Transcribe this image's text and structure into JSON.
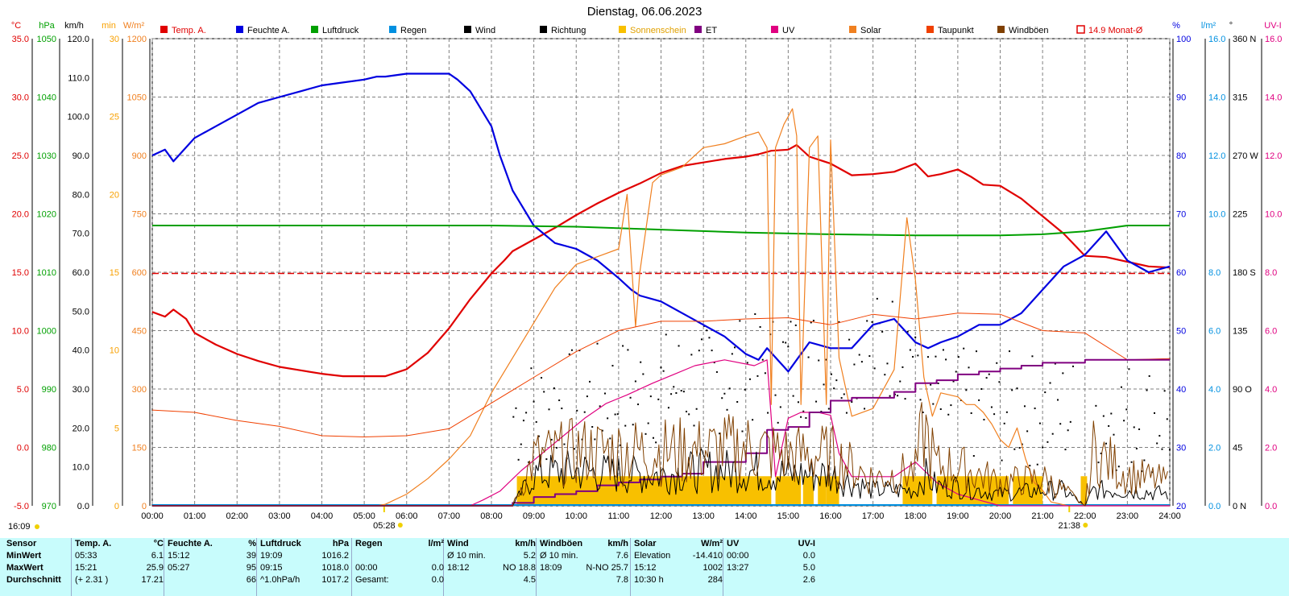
{
  "title": "Dienstag, 06.06.2023",
  "left_axis_units": {
    "temp": "°C",
    "hpa": "hPa",
    "kmh": "km/h",
    "min": "min",
    "wm2": "W/m²"
  },
  "right_axis_units": {
    "pct": "%",
    "lm2": "l/m²",
    "deg": "°",
    "uvi": "UV-I"
  },
  "legend": [
    {
      "label": "Temp. A.",
      "color": "#e00000",
      "box": "fill"
    },
    {
      "label": "Feuchte A.",
      "color": "#0000e0",
      "box": "fill"
    },
    {
      "label": "Luftdruck",
      "color": "#00a000",
      "box": "fill"
    },
    {
      "label": "Regen",
      "color": "#0090e0",
      "box": "fill"
    },
    {
      "label": "Wind",
      "color": "#000000",
      "box": "fill"
    },
    {
      "label": "Richtung",
      "color": "#000000",
      "box": "fill"
    },
    {
      "label": "Sonnenschein",
      "color": "#f8c000",
      "box": "fill"
    },
    {
      "label": "ET",
      "color": "#800080",
      "box": "fill"
    },
    {
      "label": "UV",
      "color": "#e00080",
      "box": "fill"
    },
    {
      "label": "Solar",
      "color": "#f08020",
      "box": "fill"
    },
    {
      "label": "Taupunkt",
      "color": "#f04000",
      "box": "fill"
    },
    {
      "label": "Windböen",
      "color": "#804000",
      "box": "fill"
    },
    {
      "label": "14.9 Monat-Ø",
      "color": "#e00000",
      "box": "outline"
    }
  ],
  "time_ticks": [
    "00:00",
    "01:00",
    "02:00",
    "03:00",
    "04:00",
    "05:00",
    "06:00",
    "07:00",
    "08:00",
    "09:00",
    "10:00",
    "11:00",
    "12:00",
    "13:00",
    "14:00",
    "15:00",
    "16:00",
    "17:00",
    "18:00",
    "19:00",
    "20:00",
    "21:00",
    "22:00",
    "23:00",
    "24:00"
  ],
  "sunrise_label": "05:28",
  "sunset_label": "21:38",
  "current_time_label": "16:09",
  "axes": {
    "temp": {
      "color": "#e00000",
      "ticks": [
        "35.0",
        "30.0",
        "25.0",
        "20.0",
        "15.0",
        "10.0",
        "5.0",
        "0.0",
        "-5.0"
      ]
    },
    "hpa": {
      "color": "#00a000",
      "ticks": [
        "1050",
        "1040",
        "1030",
        "1020",
        "1010",
        "1000",
        "990",
        "980",
        "970"
      ]
    },
    "kmh": {
      "color": "#000000",
      "ticks": [
        "120.0",
        "110.0",
        "100.0",
        "90.0",
        "80.0",
        "70.0",
        "60.0",
        "50.0",
        "40.0",
        "30.0",
        "20.0",
        "10.0",
        "0.0"
      ]
    },
    "min": {
      "color": "#f8a000",
      "ticks": [
        "30",
        "25",
        "20",
        "15",
        "10",
        "5",
        "0"
      ]
    },
    "wm2": {
      "color": "#f08020",
      "ticks": [
        "1200",
        "1050",
        "900",
        "750",
        "600",
        "450",
        "300",
        "150",
        "0"
      ]
    },
    "pct": {
      "color": "#0000e0",
      "ticks": [
        "100",
        "90",
        "80",
        "70",
        "60",
        "50",
        "40",
        "30",
        "20"
      ]
    },
    "lm2": {
      "color": "#0090e0",
      "ticks": [
        "16.0",
        "14.0",
        "12.0",
        "10.0",
        "8.0",
        "6.0",
        "4.0",
        "2.0",
        "0.0"
      ]
    },
    "deg": {
      "color": "#000000",
      "ticks": [
        "360 N",
        "315",
        "270 W",
        "225",
        "180 S",
        "135",
        "90 O",
        "45",
        "0 N"
      ]
    },
    "uvi": {
      "color": "#e00080",
      "ticks": [
        "16.0",
        "14.0",
        "12.0",
        "10.0",
        "8.0",
        "6.0",
        "4.0",
        "2.0",
        "0.0"
      ]
    }
  },
  "chart_data": {
    "type": "line",
    "x_unit": "hours",
    "xlim": [
      0,
      24
    ],
    "temp_ylim": [
      -5,
      35
    ],
    "series": [
      {
        "name": "Temp. A.",
        "axis": "temp",
        "color": "#e00000",
        "width": 2.2,
        "x": [
          0,
          0.3,
          0.5,
          0.8,
          1,
          1.5,
          2,
          2.5,
          3,
          3.5,
          4,
          4.5,
          5,
          5.5,
          6,
          6.5,
          7,
          7.5,
          8,
          8.3,
          8.5,
          9,
          9.5,
          10,
          10.5,
          11,
          11.5,
          12,
          12.5,
          13,
          13.5,
          14,
          14.3,
          14.6,
          15,
          15.2,
          15.5,
          16,
          16.5,
          17,
          17.5,
          18,
          18.3,
          18.6,
          19,
          19.3,
          19.6,
          20,
          20.5,
          21,
          21.5,
          22,
          22.5,
          23,
          23.5,
          24
        ],
        "y": [
          11.6,
          11.2,
          11.8,
          11.0,
          9.8,
          8.8,
          8.0,
          7.4,
          6.9,
          6.6,
          6.3,
          6.1,
          6.1,
          6.1,
          6.7,
          8.1,
          10.2,
          12.7,
          14.9,
          16.0,
          16.8,
          17.8,
          18.8,
          19.9,
          20.9,
          21.8,
          22.6,
          23.5,
          24.1,
          24.4,
          24.7,
          24.9,
          25.1,
          25.4,
          25.5,
          25.9,
          24.9,
          24.3,
          23.3,
          23.4,
          23.6,
          24.3,
          23.2,
          23.4,
          23.8,
          23.2,
          22.5,
          22.4,
          21.3,
          19.8,
          18.3,
          16.4,
          16.3,
          15.9,
          15.5,
          15.4
        ]
      },
      {
        "name": "Feuchte A.",
        "axis": "pct",
        "color": "#0000e0",
        "width": 2.2,
        "x": [
          0,
          0.3,
          0.5,
          1,
          1.5,
          2,
          2.5,
          3,
          3.5,
          4,
          4.5,
          5,
          5.3,
          5.5,
          6,
          6.5,
          7,
          7.2,
          7.5,
          8,
          8.2,
          8.5,
          9,
          9.5,
          10,
          10.5,
          11,
          11.3,
          11.5,
          12,
          12.5,
          13,
          13.5,
          14,
          14.3,
          14.5,
          15,
          15.5,
          16,
          16.5,
          17,
          17.5,
          18,
          18.3,
          18.6,
          19,
          19.5,
          20,
          20.5,
          21,
          21.5,
          22,
          22.5,
          23,
          23.5,
          24
        ],
        "y": [
          80,
          81,
          79,
          83,
          85,
          87,
          89,
          90,
          91,
          92,
          92.5,
          93,
          93.5,
          93.5,
          94,
          94,
          94,
          93,
          91,
          85,
          80,
          74,
          68,
          65,
          64,
          62,
          59,
          57,
          56,
          55,
          53,
          51,
          49,
          46,
          45,
          47,
          43,
          48,
          47,
          47,
          51,
          52,
          48,
          47,
          48,
          49,
          51,
          51,
          53,
          57,
          61,
          63,
          67,
          62,
          60,
          61
        ]
      },
      {
        "name": "Luftdruck",
        "axis": "hpa",
        "color": "#00a000",
        "width": 2,
        "x": [
          0,
          3,
          6,
          8,
          10,
          12,
          14,
          16,
          18,
          19,
          20,
          21,
          22,
          23,
          24
        ],
        "y": [
          1018,
          1018,
          1018,
          1018,
          1017.8,
          1017.3,
          1016.8,
          1016.5,
          1016.3,
          1016.3,
          1016.3,
          1016.5,
          1017,
          1018,
          1018
        ]
      },
      {
        "name": "Solar",
        "axis": "wm2",
        "color": "#f08020",
        "width": 1.2,
        "x": [
          0,
          5.3,
          5.5,
          6,
          6.5,
          7,
          7.5,
          8,
          8.5,
          9,
          9.5,
          10,
          10.5,
          11,
          11.2,
          11.4,
          11.5,
          11.8,
          12,
          12.5,
          13,
          13.5,
          14,
          14.3,
          14.5,
          14.6,
          14.7,
          14.9,
          15,
          15.1,
          15.2,
          15.3,
          15.5,
          15.7,
          15.9,
          16,
          16.2,
          16.5,
          17,
          17.5,
          17.8,
          18,
          18.2,
          18.4,
          18.6,
          19,
          19.2,
          19.4,
          19.6,
          19.8,
          20,
          20.2,
          20.4,
          20.6,
          20.8,
          21,
          21.2,
          21.4,
          21.6,
          21.7,
          22,
          22.5,
          23,
          23.5,
          24
        ],
        "y": [
          0,
          0,
          4,
          30,
          70,
          120,
          180,
          290,
          380,
          470,
          560,
          620,
          640,
          660,
          800,
          460,
          600,
          830,
          850,
          870,
          920,
          930,
          950,
          960,
          920,
          260,
          920,
          980,
          1000,
          1020,
          950,
          260,
          920,
          950,
          260,
          940,
          380,
          230,
          250,
          350,
          740,
          580,
          330,
          230,
          290,
          280,
          260,
          260,
          240,
          210,
          170,
          150,
          200,
          120,
          60,
          40,
          10,
          5,
          0,
          0,
          0,
          0,
          0,
          0,
          0
        ]
      },
      {
        "name": "Taupunkt",
        "axis": "temp",
        "color": "#f04000",
        "width": 1,
        "x": [
          0,
          1,
          2,
          3,
          4,
          5,
          6,
          7,
          8,
          9,
          10,
          11,
          12,
          13,
          14,
          15,
          16,
          17,
          18,
          19,
          20,
          21,
          22,
          23,
          24
        ],
        "y": [
          3.2,
          3,
          2.3,
          1.8,
          1,
          0.9,
          1,
          1.6,
          3.8,
          6,
          8.2,
          10,
          10.8,
          10.8,
          11,
          11.1,
          10.5,
          11.4,
          11,
          11.5,
          11.4,
          10,
          9.8,
          7.5,
          7.6
        ]
      },
      {
        "name": "UV",
        "axis": "uvi",
        "color": "#e00080",
        "width": 1.2,
        "x": [
          0,
          7.5,
          7.8,
          8.2,
          8.7,
          9.2,
          9.7,
          10.2,
          10.7,
          11.2,
          11.8,
          12.3,
          12.8,
          13.5,
          14.2,
          14.5,
          14.7,
          15,
          15.3,
          15.7,
          16,
          16.2,
          16.5,
          17,
          17.5,
          18,
          18.5,
          19,
          19.5,
          20,
          24
        ],
        "y": [
          0,
          0,
          0.2,
          0.5,
          1.2,
          1.8,
          2.4,
          3,
          3.5,
          3.8,
          4.2,
          4.5,
          4.8,
          5.0,
          4.8,
          5.0,
          1,
          3,
          3.2,
          3.2,
          3.1,
          1.8,
          1,
          1,
          1,
          1.5,
          0.8,
          0.4,
          0.2,
          0,
          0
        ]
      },
      {
        "name": "ET",
        "axis": "lm2",
        "color": "#800080",
        "width": 2,
        "step": true,
        "x": [
          0,
          7.5,
          8,
          8.5,
          9,
          9.5,
          10,
          10.5,
          11,
          11.5,
          12,
          12.5,
          13,
          13.5,
          14,
          14.5,
          15,
          15.5,
          16,
          16.5,
          17,
          17.5,
          18,
          18.5,
          19,
          19.5,
          20,
          20.5,
          21,
          22,
          23,
          24
        ],
        "y": [
          0,
          0,
          0,
          0.1,
          0.3,
          0.4,
          0.5,
          0.7,
          0.8,
          0.9,
          1.0,
          1.1,
          1.5,
          1.5,
          1.8,
          2.6,
          2.7,
          3.2,
          3.6,
          3.7,
          3.7,
          3.9,
          4.2,
          4.3,
          4.5,
          4.6,
          4.7,
          4.8,
          4.9,
          5.0,
          5.0,
          5.0
        ]
      },
      {
        "name": "Wind",
        "axis": "kmh",
        "color": "#000000",
        "width": 1,
        "noise": true,
        "x": [
          0,
          8.5,
          9,
          10,
          11,
          12,
          13,
          14,
          15,
          16,
          17,
          18,
          18.2,
          18.5,
          19,
          20,
          21,
          21.5,
          22,
          22.2,
          23,
          24
        ],
        "y": [
          0,
          0,
          8,
          9,
          8,
          8,
          9,
          9,
          8,
          8,
          4,
          4,
          8,
          5,
          5,
          3,
          4,
          4,
          0,
          4,
          4,
          3
        ]
      },
      {
        "name": "Windböen",
        "axis": "kmh",
        "color": "#804000",
        "width": 1,
        "noise": true,
        "x": [
          0,
          8.5,
          9,
          10,
          11,
          12,
          13,
          14,
          15,
          16,
          17,
          18,
          18.2,
          18.5,
          19,
          20,
          21,
          21.5,
          22,
          22.2,
          23,
          24
        ],
        "y": [
          0,
          0,
          12,
          14,
          14,
          14,
          14,
          15,
          13,
          13,
          7,
          9,
          20,
          10,
          10,
          6,
          7,
          4,
          0,
          14,
          8,
          6
        ]
      }
    ],
    "monthly_average_temp": 14.9,
    "sunshine_blocks_hours": [
      [
        8.6,
        14.6
      ],
      [
        14.7,
        15.3
      ],
      [
        15.35,
        15.6
      ],
      [
        15.7,
        15.9
      ],
      [
        15.9,
        16.2
      ],
      [
        17.7,
        18.4
      ],
      [
        18.5,
        20.2
      ],
      [
        20.3,
        21
      ],
      [
        21.9,
        22.05
      ]
    ],
    "direction_points": true
  },
  "stats": {
    "row_labels": [
      "Sensor",
      "MinWert",
      "MaxWert",
      "Durchschnitt"
    ],
    "groups": [
      {
        "title": "Temp. A.",
        "unit": "°C",
        "rows": [
          [
            "05:33",
            "6.1"
          ],
          [
            "15:21",
            "25.9"
          ],
          [
            "(+ 2.31 )",
            "17.21"
          ]
        ]
      },
      {
        "title": "Feuchte A.",
        "unit": "%",
        "rows": [
          [
            "15:12",
            "39"
          ],
          [
            "05:27",
            "95"
          ],
          [
            "",
            "66"
          ]
        ]
      },
      {
        "title": "Luftdruck",
        "unit": "hPa",
        "rows": [
          [
            "19:09",
            "1016.2"
          ],
          [
            "09:15",
            "1018.0"
          ],
          [
            "^1.0hPa/h",
            "1017.2"
          ]
        ]
      },
      {
        "title": "Regen",
        "unit": "l/m²",
        "rows": [
          [
            "",
            ""
          ],
          [
            "00:00",
            "0.0"
          ],
          [
            "Gesamt:",
            "0.0"
          ]
        ]
      },
      {
        "title": "Wind",
        "unit": "km/h",
        "rows": [
          [
            "Ø 10 min.",
            "5.2"
          ],
          [
            "18:12",
            "NO 18.8"
          ],
          [
            "",
            "4.5"
          ]
        ]
      },
      {
        "title": "Windböen",
        "unit": "km/h",
        "rows": [
          [
            "Ø 10 min.",
            "7.6"
          ],
          [
            "18:09",
            "N-NO 25.7"
          ],
          [
            "",
            "7.8"
          ]
        ]
      },
      {
        "title": "Solar",
        "unit": "W/m²",
        "rows": [
          [
            "Elevation",
            "-14.410"
          ],
          [
            "15:12",
            "1002"
          ],
          [
            "10:30 h",
            "284"
          ]
        ]
      },
      {
        "title": "UV",
        "unit": "UV-I",
        "rows": [
          [
            "00:00",
            "0.0"
          ],
          [
            "13:27",
            "5.0"
          ],
          [
            "",
            "2.6"
          ]
        ]
      }
    ]
  }
}
